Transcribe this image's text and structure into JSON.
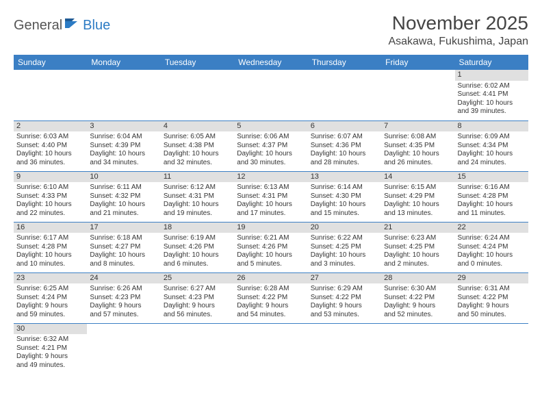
{
  "logo": {
    "part1": "General",
    "part2": "Blue"
  },
  "title": "November 2025",
  "location": "Asakawa, Fukushima, Japan",
  "colors": {
    "header_bg": "#3b7fc4",
    "header_text": "#ffffff",
    "daynum_bg": "#e0e0e0",
    "rule": "#3b7fc4",
    "logo_blue": "#2c7bc4"
  },
  "day_headers": [
    "Sunday",
    "Monday",
    "Tuesday",
    "Wednesday",
    "Thursday",
    "Friday",
    "Saturday"
  ],
  "weeks": [
    [
      null,
      null,
      null,
      null,
      null,
      null,
      {
        "n": "1",
        "sr": "Sunrise: 6:02 AM",
        "ss": "Sunset: 4:41 PM",
        "d1": "Daylight: 10 hours",
        "d2": "and 39 minutes."
      }
    ],
    [
      {
        "n": "2",
        "sr": "Sunrise: 6:03 AM",
        "ss": "Sunset: 4:40 PM",
        "d1": "Daylight: 10 hours",
        "d2": "and 36 minutes."
      },
      {
        "n": "3",
        "sr": "Sunrise: 6:04 AM",
        "ss": "Sunset: 4:39 PM",
        "d1": "Daylight: 10 hours",
        "d2": "and 34 minutes."
      },
      {
        "n": "4",
        "sr": "Sunrise: 6:05 AM",
        "ss": "Sunset: 4:38 PM",
        "d1": "Daylight: 10 hours",
        "d2": "and 32 minutes."
      },
      {
        "n": "5",
        "sr": "Sunrise: 6:06 AM",
        "ss": "Sunset: 4:37 PM",
        "d1": "Daylight: 10 hours",
        "d2": "and 30 minutes."
      },
      {
        "n": "6",
        "sr": "Sunrise: 6:07 AM",
        "ss": "Sunset: 4:36 PM",
        "d1": "Daylight: 10 hours",
        "d2": "and 28 minutes."
      },
      {
        "n": "7",
        "sr": "Sunrise: 6:08 AM",
        "ss": "Sunset: 4:35 PM",
        "d1": "Daylight: 10 hours",
        "d2": "and 26 minutes."
      },
      {
        "n": "8",
        "sr": "Sunrise: 6:09 AM",
        "ss": "Sunset: 4:34 PM",
        "d1": "Daylight: 10 hours",
        "d2": "and 24 minutes."
      }
    ],
    [
      {
        "n": "9",
        "sr": "Sunrise: 6:10 AM",
        "ss": "Sunset: 4:33 PM",
        "d1": "Daylight: 10 hours",
        "d2": "and 22 minutes."
      },
      {
        "n": "10",
        "sr": "Sunrise: 6:11 AM",
        "ss": "Sunset: 4:32 PM",
        "d1": "Daylight: 10 hours",
        "d2": "and 21 minutes."
      },
      {
        "n": "11",
        "sr": "Sunrise: 6:12 AM",
        "ss": "Sunset: 4:31 PM",
        "d1": "Daylight: 10 hours",
        "d2": "and 19 minutes."
      },
      {
        "n": "12",
        "sr": "Sunrise: 6:13 AM",
        "ss": "Sunset: 4:31 PM",
        "d1": "Daylight: 10 hours",
        "d2": "and 17 minutes."
      },
      {
        "n": "13",
        "sr": "Sunrise: 6:14 AM",
        "ss": "Sunset: 4:30 PM",
        "d1": "Daylight: 10 hours",
        "d2": "and 15 minutes."
      },
      {
        "n": "14",
        "sr": "Sunrise: 6:15 AM",
        "ss": "Sunset: 4:29 PM",
        "d1": "Daylight: 10 hours",
        "d2": "and 13 minutes."
      },
      {
        "n": "15",
        "sr": "Sunrise: 6:16 AM",
        "ss": "Sunset: 4:28 PM",
        "d1": "Daylight: 10 hours",
        "d2": "and 11 minutes."
      }
    ],
    [
      {
        "n": "16",
        "sr": "Sunrise: 6:17 AM",
        "ss": "Sunset: 4:28 PM",
        "d1": "Daylight: 10 hours",
        "d2": "and 10 minutes."
      },
      {
        "n": "17",
        "sr": "Sunrise: 6:18 AM",
        "ss": "Sunset: 4:27 PM",
        "d1": "Daylight: 10 hours",
        "d2": "and 8 minutes."
      },
      {
        "n": "18",
        "sr": "Sunrise: 6:19 AM",
        "ss": "Sunset: 4:26 PM",
        "d1": "Daylight: 10 hours",
        "d2": "and 6 minutes."
      },
      {
        "n": "19",
        "sr": "Sunrise: 6:21 AM",
        "ss": "Sunset: 4:26 PM",
        "d1": "Daylight: 10 hours",
        "d2": "and 5 minutes."
      },
      {
        "n": "20",
        "sr": "Sunrise: 6:22 AM",
        "ss": "Sunset: 4:25 PM",
        "d1": "Daylight: 10 hours",
        "d2": "and 3 minutes."
      },
      {
        "n": "21",
        "sr": "Sunrise: 6:23 AM",
        "ss": "Sunset: 4:25 PM",
        "d1": "Daylight: 10 hours",
        "d2": "and 2 minutes."
      },
      {
        "n": "22",
        "sr": "Sunrise: 6:24 AM",
        "ss": "Sunset: 4:24 PM",
        "d1": "Daylight: 10 hours",
        "d2": "and 0 minutes."
      }
    ],
    [
      {
        "n": "23",
        "sr": "Sunrise: 6:25 AM",
        "ss": "Sunset: 4:24 PM",
        "d1": "Daylight: 9 hours",
        "d2": "and 59 minutes."
      },
      {
        "n": "24",
        "sr": "Sunrise: 6:26 AM",
        "ss": "Sunset: 4:23 PM",
        "d1": "Daylight: 9 hours",
        "d2": "and 57 minutes."
      },
      {
        "n": "25",
        "sr": "Sunrise: 6:27 AM",
        "ss": "Sunset: 4:23 PM",
        "d1": "Daylight: 9 hours",
        "d2": "and 56 minutes."
      },
      {
        "n": "26",
        "sr": "Sunrise: 6:28 AM",
        "ss": "Sunset: 4:22 PM",
        "d1": "Daylight: 9 hours",
        "d2": "and 54 minutes."
      },
      {
        "n": "27",
        "sr": "Sunrise: 6:29 AM",
        "ss": "Sunset: 4:22 PM",
        "d1": "Daylight: 9 hours",
        "d2": "and 53 minutes."
      },
      {
        "n": "28",
        "sr": "Sunrise: 6:30 AM",
        "ss": "Sunset: 4:22 PM",
        "d1": "Daylight: 9 hours",
        "d2": "and 52 minutes."
      },
      {
        "n": "29",
        "sr": "Sunrise: 6:31 AM",
        "ss": "Sunset: 4:22 PM",
        "d1": "Daylight: 9 hours",
        "d2": "and 50 minutes."
      }
    ],
    [
      {
        "n": "30",
        "sr": "Sunrise: 6:32 AM",
        "ss": "Sunset: 4:21 PM",
        "d1": "Daylight: 9 hours",
        "d2": "and 49 minutes."
      },
      null,
      null,
      null,
      null,
      null,
      null
    ]
  ]
}
